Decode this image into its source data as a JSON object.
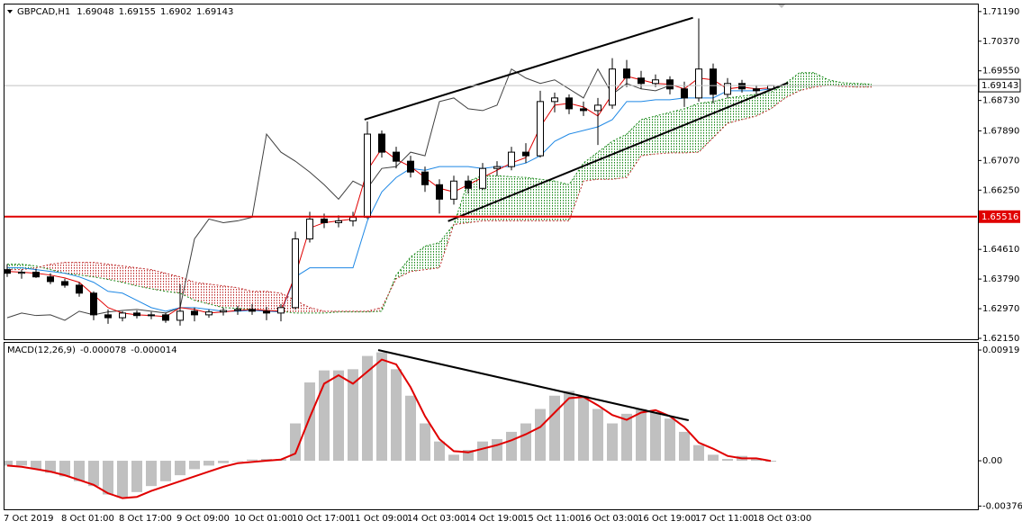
{
  "chart_data": [
    {
      "type": "candlestick",
      "title": "GBPCAD,H1",
      "open": [
        1.6405,
        1.6395,
        1.6398,
        1.6385,
        1.6372,
        1.6362,
        1.634,
        1.628,
        1.6272,
        1.6285,
        1.6278,
        1.628,
        1.6265,
        1.629,
        1.628,
        1.6288,
        1.6292,
        1.6295,
        1.629,
        1.6285,
        1.63,
        1.649,
        1.6545,
        1.6535,
        1.654,
        1.655,
        1.678,
        1.673,
        1.6705,
        1.6675,
        1.664,
        1.66,
        1.665,
        1.663,
        1.6685,
        1.669,
        1.673,
        1.672,
        1.687,
        1.688,
        1.685,
        1.6845,
        1.686,
        1.696,
        1.6935,
        1.692,
        1.693,
        1.6905,
        1.688,
        1.696,
        1.689,
        1.692,
        1.6905,
        1.69048,
        null,
        null,
        null,
        null,
        null,
        null,
        null
      ],
      "high": [
        1.642,
        1.6405,
        1.6408,
        1.6395,
        1.638,
        1.637,
        1.6345,
        1.6295,
        1.629,
        1.6292,
        1.6288,
        1.6286,
        1.6365,
        1.63,
        1.6295,
        1.63,
        1.6305,
        1.631,
        1.6302,
        1.631,
        1.651,
        1.6565,
        1.656,
        1.6555,
        1.6565,
        1.6815,
        1.679,
        1.6745,
        1.672,
        1.669,
        1.6655,
        1.6665,
        1.6665,
        1.67,
        1.6705,
        1.6745,
        1.6755,
        1.69,
        1.6895,
        1.689,
        1.687,
        1.688,
        1.699,
        1.6985,
        1.6955,
        1.6945,
        1.694,
        1.6925,
        1.71,
        1.6975,
        1.6935,
        1.693,
        1.6915,
        1.69155,
        null,
        null,
        null,
        null,
        null,
        null,
        null
      ],
      "low": [
        1.6385,
        1.638,
        1.6382,
        1.6365,
        1.6355,
        1.633,
        1.6265,
        1.6255,
        1.6262,
        1.627,
        1.6268,
        1.6258,
        1.625,
        1.6262,
        1.6272,
        1.6278,
        1.628,
        1.628,
        1.6265,
        1.6262,
        1.6295,
        1.648,
        1.652,
        1.6522,
        1.6525,
        1.6545,
        1.6715,
        1.6685,
        1.666,
        1.662,
        1.656,
        1.6585,
        1.6615,
        1.6625,
        1.6665,
        1.668,
        1.67,
        1.6715,
        1.684,
        1.6835,
        1.683,
        1.675,
        1.685,
        1.691,
        1.6905,
        1.691,
        1.689,
        1.6855,
        1.687,
        1.6865,
        1.688,
        1.6895,
        1.689,
        1.6902,
        null,
        null,
        null,
        null,
        null,
        null,
        null
      ],
      "close": [
        1.6395,
        1.6398,
        1.6385,
        1.6372,
        1.6362,
        1.634,
        1.628,
        1.6272,
        1.6285,
        1.6278,
        1.628,
        1.6265,
        1.629,
        1.628,
        1.6288,
        1.6292,
        1.6295,
        1.629,
        1.6285,
        1.63,
        1.649,
        1.6545,
        1.6535,
        1.654,
        1.655,
        1.678,
        1.673,
        1.6705,
        1.6675,
        1.664,
        1.66,
        1.665,
        1.663,
        1.6685,
        1.669,
        1.673,
        1.672,
        1.687,
        1.688,
        1.685,
        1.6845,
        1.686,
        1.696,
        1.6935,
        1.692,
        1.693,
        1.6905,
        1.688,
        1.696,
        1.689,
        1.692,
        1.6905,
        1.69,
        1.69143,
        null,
        null,
        null,
        null,
        null,
        null,
        null
      ],
      "tenkan": [
        1.64,
        1.6398,
        1.6395,
        1.639,
        1.6382,
        1.637,
        1.6335,
        1.63,
        1.6285,
        1.628,
        1.6278,
        1.6275,
        1.63,
        1.6295,
        1.6285,
        1.6288,
        1.6292,
        1.6295,
        1.6292,
        1.629,
        1.639,
        1.652,
        1.6535,
        1.654,
        1.6545,
        1.668,
        1.674,
        1.671,
        1.669,
        1.666,
        1.663,
        1.662,
        1.664,
        1.666,
        1.668,
        1.67,
        1.6715,
        1.68,
        1.686,
        1.6865,
        1.6855,
        1.683,
        1.689,
        1.694,
        1.693,
        1.692,
        1.6918,
        1.6905,
        1.6935,
        1.693,
        1.6905,
        1.691,
        1.6905,
        1.6908,
        null,
        null,
        null,
        null,
        null,
        null,
        null
      ],
      "kijun": [
        1.641,
        1.641,
        1.6405,
        1.64,
        1.6395,
        1.6385,
        1.637,
        1.6345,
        1.634,
        1.632,
        1.63,
        1.629,
        1.63,
        1.63,
        1.6295,
        1.629,
        1.629,
        1.6292,
        1.629,
        1.6288,
        1.6385,
        1.641,
        1.641,
        1.641,
        1.641,
        1.654,
        1.662,
        1.666,
        1.6685,
        1.668,
        1.669,
        1.669,
        1.669,
        1.6685,
        1.669,
        1.669,
        1.67,
        1.672,
        1.676,
        1.678,
        1.679,
        1.68,
        1.682,
        1.687,
        1.687,
        1.6875,
        1.6875,
        1.688,
        1.688,
        1.688,
        1.69,
        1.69,
        1.69,
        1.6905,
        null,
        null,
        null,
        null,
        null,
        null,
        null
      ],
      "chikou": [
        1.6272,
        1.6285,
        1.6278,
        1.628,
        1.6265,
        1.629,
        1.628,
        1.6288,
        1.6292,
        1.6295,
        1.629,
        1.6285,
        1.63,
        1.649,
        1.6545,
        1.6535,
        1.654,
        1.655,
        1.678,
        1.673,
        1.6705,
        1.6675,
        1.664,
        1.66,
        1.665,
        1.663,
        1.6685,
        1.669,
        1.673,
        1.672,
        1.687,
        1.688,
        1.685,
        1.6845,
        1.686,
        1.696,
        1.6935,
        1.692,
        1.693,
        1.6905,
        1.688,
        1.696,
        1.689,
        1.692,
        1.6905,
        1.69,
        1.69143,
        null,
        null,
        null,
        null,
        null,
        null,
        null,
        null,
        null,
        null,
        null,
        null,
        null,
        null
      ],
      "span_a": [
        1.642,
        1.642,
        1.6415,
        1.6405,
        1.6395,
        1.639,
        1.6385,
        1.6378,
        1.637,
        1.636,
        1.6352,
        1.6345,
        1.634,
        1.632,
        1.631,
        1.63,
        1.6298,
        1.6295,
        1.6292,
        1.629,
        1.6285,
        1.6285,
        1.6285,
        1.6288,
        1.6288,
        1.6288,
        1.629,
        1.639,
        1.644,
        1.647,
        1.648,
        1.653,
        1.665,
        1.6665,
        1.6665,
        1.6662,
        1.666,
        1.6655,
        1.665,
        1.664,
        1.67,
        1.673,
        1.676,
        1.678,
        1.682,
        1.683,
        1.684,
        1.685,
        1.6865,
        1.687,
        1.688,
        1.6885,
        1.689,
        1.6895,
        1.692,
        1.695,
        1.695,
        1.693,
        1.6922,
        1.692,
        1.6918
      ],
      "span_b": [
        1.6405,
        1.6405,
        1.641,
        1.642,
        1.6425,
        1.6425,
        1.6425,
        1.642,
        1.6415,
        1.641,
        1.6405,
        1.6395,
        1.6385,
        1.637,
        1.6365,
        1.636,
        1.6355,
        1.6345,
        1.6345,
        1.634,
        1.632,
        1.63,
        1.629,
        1.629,
        1.629,
        1.629,
        1.63,
        1.638,
        1.64,
        1.6405,
        1.641,
        1.653,
        1.6535,
        1.654,
        1.654,
        1.654,
        1.654,
        1.654,
        1.654,
        1.654,
        1.665,
        1.6655,
        1.6655,
        1.666,
        1.672,
        1.6725,
        1.6728,
        1.6728,
        1.673,
        1.677,
        1.681,
        1.682,
        1.683,
        1.685,
        1.688,
        1.69,
        1.691,
        1.6915,
        1.6912,
        1.691,
        1.691
      ],
      "colors": {
        "up_body": "#ffffff",
        "down_body": "#000000",
        "outline": "#000000",
        "tenkan": "#e00000",
        "kijun": "#1e88e5",
        "chikou": "#404040",
        "span_a": "#1a8a1a",
        "span_b": "#c03030",
        "cloud_up": "#1a8a1a",
        "cloud_down": "#c03030",
        "trendline": "#000000",
        "price_line": "#c0c0c0"
      },
      "hline": {
        "value": 1.65516,
        "color": "#e00000"
      },
      "trendlines": [
        {
          "x": [
            24.8,
            47.6
          ],
          "y": [
            1.682,
            1.7102
          ]
        },
        {
          "x": [
            30.6,
            54.2
          ],
          "y": [
            1.6539,
            1.6922
          ]
        }
      ],
      "ylim": [
        1.621,
        1.7141
      ],
      "yticks": [
        {
          "value": 1.7119,
          "label": "1.71190"
        },
        {
          "value": 1.7037,
          "label": "1.70370"
        },
        {
          "value": 1.6955,
          "label": "1.69550"
        },
        {
          "value": 1.6873,
          "label": "1.68730"
        },
        {
          "value": 1.6789,
          "label": "1.67890"
        },
        {
          "value": 1.6707,
          "label": "1.67070"
        },
        {
          "value": 1.6625,
          "label": "1.66250"
        },
        {
          "value": 1.6461,
          "label": "1.64610"
        },
        {
          "value": 1.6379,
          "label": "1.63790"
        },
        {
          "value": 1.6297,
          "label": "1.62970"
        },
        {
          "value": 1.6215,
          "label": "1.62150"
        }
      ]
    },
    {
      "type": "macd",
      "title": "MACD(12,26,9)",
      "categories": [
        "7 Oct 2019",
        null,
        null,
        null,
        "8 Oct 01:00",
        null,
        null,
        null,
        "8 Oct 17:00",
        null,
        null,
        null,
        "9 Oct 09:00",
        null,
        null,
        null,
        "10 Oct 01:00",
        null,
        null,
        null,
        "10 Oct 17:00",
        null,
        null,
        null,
        "11 Oct 09:00",
        null,
        null,
        null,
        "14 Oct 03:00",
        null,
        null,
        null,
        "14 Oct 19:00",
        null,
        null,
        null,
        "15 Oct 11:00",
        null,
        null,
        null,
        "16 Oct 03:00",
        null,
        null,
        null,
        "16 Oct 19:00",
        null,
        null,
        null,
        "17 Oct 11:00",
        null,
        null,
        null,
        "18 Oct 03:00",
        null,
        null,
        null,
        null,
        null,
        null,
        null,
        null
      ],
      "macd": [
        -0.0004,
        -0.0004,
        -0.0007,
        -0.001,
        -0.0013,
        -0.0017,
        -0.0021,
        -0.0028,
        -0.003,
        -0.0026,
        -0.0021,
        -0.0017,
        -0.0012,
        -0.0007,
        -0.0004,
        -0.0002,
        0,
        0.0001,
        0.00015,
        0.00015,
        0.0031,
        0.0065,
        0.0075,
        0.0075,
        0.0076,
        0.0087,
        0.009,
        0.0076,
        0.0054,
        0.0031,
        0.0016,
        0.0005,
        0.0009,
        0.0016,
        0.0018,
        0.0024,
        0.0031,
        0.0043,
        0.0054,
        0.0058,
        0.0054,
        0.0043,
        0.0031,
        0.0039,
        0.0043,
        0.004,
        0.0035,
        0.0024,
        0.0013,
        0.0005,
        0.00015,
        0.0004,
        0.00015,
        -7.8e-05,
        null,
        null,
        null,
        null,
        null,
        null,
        null
      ],
      "signal": [
        -0.0004,
        -0.0005,
        -0.0007,
        -0.0009,
        -0.0012,
        -0.0016,
        -0.002,
        -0.0027,
        -0.0031,
        -0.003,
        -0.0025,
        -0.0021,
        -0.0017,
        -0.0013,
        -0.0009,
        -0.0005,
        -0.0002,
        -0.0001,
        0,
        0.0001,
        0.0006,
        0.0036,
        0.0064,
        0.0071,
        0.0064,
        0.0074,
        0.0084,
        0.008,
        0.0061,
        0.0037,
        0.0018,
        0.0008,
        0.0007,
        0.001,
        0.0013,
        0.0017,
        0.0022,
        0.0028,
        0.004,
        0.0052,
        0.0053,
        0.0046,
        0.0038,
        0.0034,
        0.004,
        0.0042,
        0.0037,
        0.0028,
        0.0015,
        0.001,
        0.0004,
        0.0002,
        0.0002,
        -1.4e-05,
        null,
        null,
        null,
        null,
        null,
        null,
        null
      ],
      "colors": {
        "histogram": "#c0c0c0",
        "signal": "#e00000",
        "trendline": "#000000"
      },
      "trendlines": [
        {
          "x": [
            25.75,
            47.3
          ],
          "y": [
            0.00919,
            0.00336
          ]
        }
      ],
      "ylim": [
        -0.00403,
        0.00979
      ],
      "yticks": [
        0.00919,
        {
          "value": 0,
          "label": "0.00"
        },
        -0.003762
      ]
    }
  ]
}
